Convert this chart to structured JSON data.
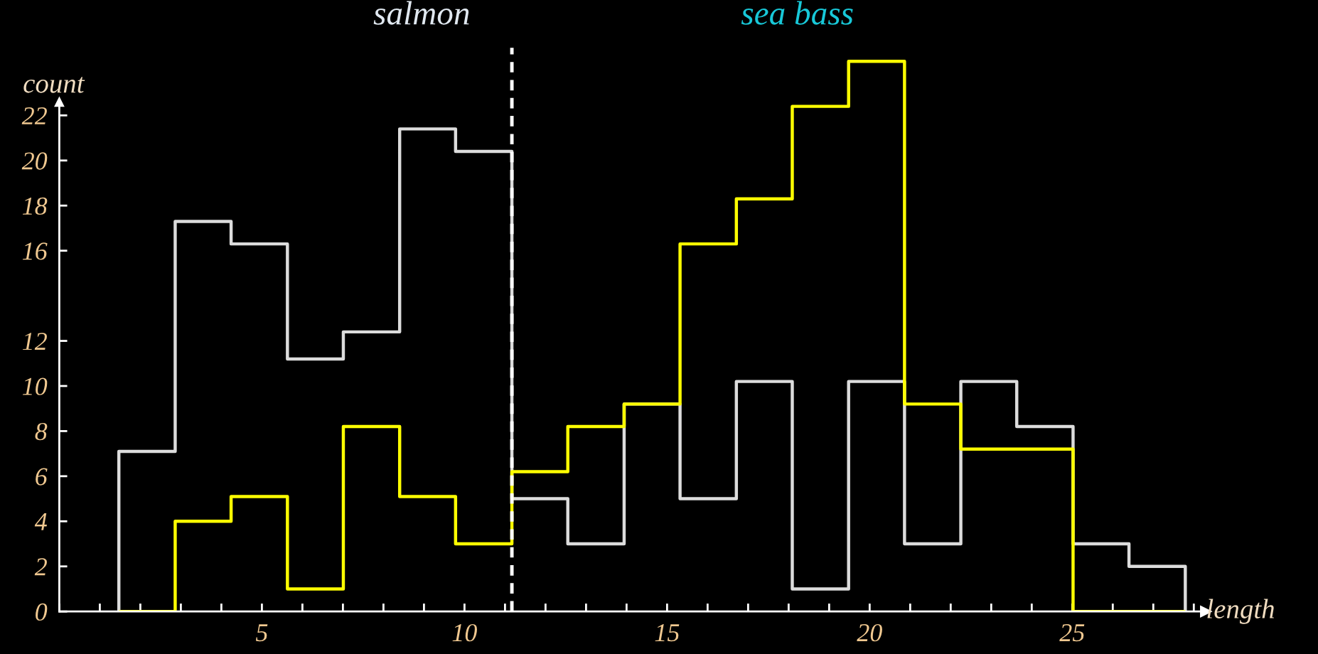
{
  "chart_data": {
    "type": "histogram",
    "xlabel": "length",
    "ylabel": "count",
    "annotations": [
      "salmon",
      "sea bass"
    ],
    "bins": [
      1.47,
      2.86,
      4.24,
      5.63,
      7.01,
      8.4,
      9.78,
      11.17,
      12.55,
      13.94,
      15.32,
      16.71,
      18.09,
      19.48,
      20.86,
      22.25,
      23.63,
      25.02,
      26.4,
      27.79
    ],
    "series": [
      {
        "color": "#dcdcdc",
        "values": [
          7.1,
          17.3,
          16.3,
          11.2,
          12.4,
          21.4,
          20.4,
          5.0,
          3.0,
          9.2,
          5.0,
          10.2,
          1.0,
          10.2,
          3.0,
          10.2,
          8.2,
          3.0,
          2.0
        ]
      },
      {
        "color": "#ffff00",
        "values": [
          0,
          4.0,
          5.1,
          1.0,
          8.2,
          5.1,
          3.0,
          6.2,
          8.2,
          9.2,
          16.3,
          18.3,
          22.4,
          24.4,
          9.2,
          7.2,
          7.2,
          0,
          0
        ]
      }
    ],
    "ref_lines": [
      {
        "axis": "x",
        "value": 11.17,
        "color": "#ffffff",
        "line_style": "dashed"
      }
    ],
    "xlim": [
      0,
      28.3
    ],
    "ylim": [
      0,
      25
    ],
    "xticks": [
      {
        "value": 0,
        "label": null
      },
      {
        "value": 1,
        "label": null
      },
      {
        "value": 2,
        "label": null
      },
      {
        "value": 3,
        "label": null
      },
      {
        "value": 4,
        "label": null
      },
      5,
      {
        "value": 6,
        "label": null
      },
      {
        "value": 7,
        "label": null
      },
      {
        "value": 8,
        "label": null
      },
      {
        "value": 9,
        "label": null
      },
      10,
      {
        "value": 11,
        "label": null
      },
      {
        "value": 12,
        "label": null
      },
      {
        "value": 13,
        "label": null
      },
      {
        "value": 14,
        "label": null
      },
      15,
      {
        "value": 16,
        "label": null
      },
      {
        "value": 17,
        "label": null
      },
      {
        "value": 18,
        "label": null
      },
      {
        "value": 19,
        "label": null
      },
      20,
      {
        "value": 21,
        "label": null
      },
      {
        "value": 22,
        "label": null
      },
      {
        "value": 23,
        "label": null
      },
      {
        "value": 24,
        "label": null
      },
      25,
      {
        "value": 26,
        "label": null
      },
      {
        "value": 27,
        "label": null
      },
      {
        "value": 28,
        "label": null
      }
    ],
    "yticks": [
      0,
      2,
      4,
      6,
      8,
      10,
      12,
      16,
      18,
      20,
      22
    ],
    "grid": false,
    "legend": false
  }
}
